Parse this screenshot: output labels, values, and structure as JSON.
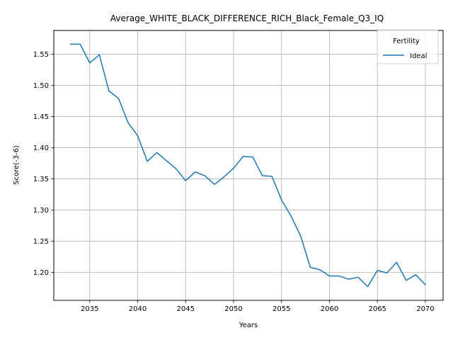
{
  "chart_data": {
    "type": "line",
    "title": "Average_WHITE_BLACK_DIFFERENCE_RICH_Black_Female_Q3_IQ",
    "xlabel": "Years",
    "ylabel": "Score(-3-6)",
    "xlim": [
      2031.25,
      2071.85
    ],
    "ylim": [
      1.155,
      1.588
    ],
    "xticks": [
      2035,
      2040,
      2045,
      2050,
      2055,
      2060,
      2065,
      2070
    ],
    "yticks": [
      1.2,
      1.25,
      1.3,
      1.35,
      1.4,
      1.45,
      1.5,
      1.55
    ],
    "xtick_labels": [
      "2035",
      "2040",
      "2045",
      "2050",
      "2055",
      "2060",
      "2065",
      "2070"
    ],
    "ytick_labels": [
      "1.20",
      "1.25",
      "1.30",
      "1.35",
      "1.40",
      "1.45",
      "1.50",
      "1.55"
    ],
    "grid": true,
    "legend": {
      "title": "Fertility",
      "placement": "top-right"
    },
    "series": [
      {
        "name": "Ideal",
        "color": "#1f77b4",
        "x": [
          2033,
          2034,
          2035,
          2036,
          2037,
          2038,
          2039,
          2040,
          2041,
          2042,
          2043,
          2044,
          2045,
          2046,
          2047,
          2048,
          2049,
          2050,
          2051,
          2052,
          2053,
          2054,
          2055,
          2056,
          2057,
          2058,
          2059,
          2060,
          2061,
          2062,
          2063,
          2064,
          2065,
          2066,
          2067,
          2068,
          2069,
          2070
        ],
        "y": [
          1.566,
          1.566,
          1.536,
          1.549,
          1.491,
          1.479,
          1.44,
          1.419,
          1.378,
          1.392,
          1.379,
          1.366,
          1.347,
          1.361,
          1.355,
          1.341,
          1.353,
          1.367,
          1.386,
          1.385,
          1.355,
          1.354,
          1.316,
          1.29,
          1.258,
          1.208,
          1.204,
          1.194,
          1.194,
          1.189,
          1.192,
          1.177,
          1.203,
          1.199,
          1.216,
          1.187,
          1.196,
          1.18
        ]
      }
    ]
  }
}
